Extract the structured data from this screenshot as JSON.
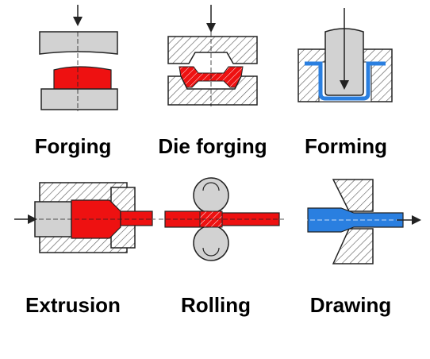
{
  "colors": {
    "workpiece_hot": "#ee1111",
    "workpiece_cold": "#2a7fe0",
    "tool_fill": "#d2d2d2",
    "hatch": "#555555",
    "outline": "#222222"
  },
  "processes": [
    {
      "id": "forging",
      "label": "Forging"
    },
    {
      "id": "die-forging",
      "label": "Die forging"
    },
    {
      "id": "forming",
      "label": "Forming"
    },
    {
      "id": "extrusion",
      "label": "Extrusion"
    },
    {
      "id": "rolling",
      "label": "Rolling"
    },
    {
      "id": "drawing",
      "label": "Drawing"
    }
  ]
}
